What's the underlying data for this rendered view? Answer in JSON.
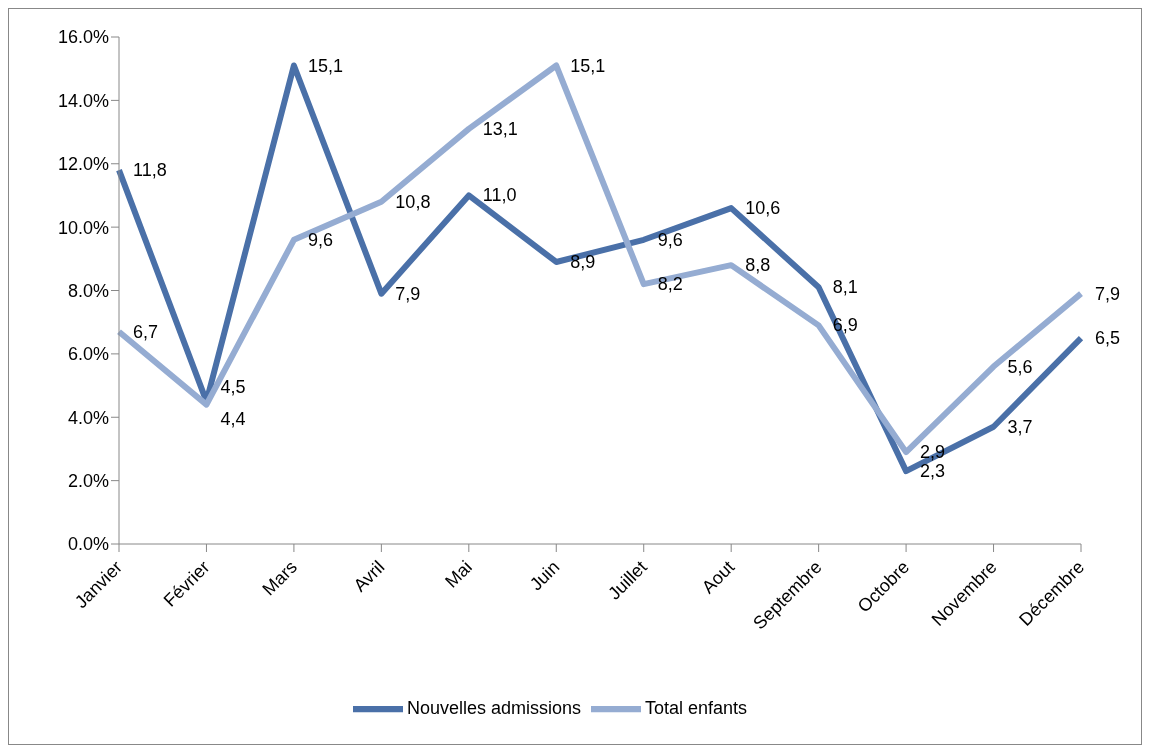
{
  "chart_data": {
    "type": "line",
    "categories": [
      "Janvier",
      "Février",
      "Mars",
      "Avril",
      "Mai",
      "Juin",
      "Juillet",
      "Aout",
      "Septembre",
      "Octobre",
      "Novembre",
      "Décembre"
    ],
    "series": [
      {
        "name": "Nouvelles admissions",
        "color": "#4a70a8",
        "values": [
          11.8,
          4.5,
          15.1,
          7.9,
          11.0,
          8.9,
          9.6,
          10.6,
          8.1,
          2.3,
          3.7,
          6.5
        ],
        "value_labels": [
          "11,8",
          "4,5",
          "15,1",
          "7,9",
          "11,0",
          "8,9",
          "9,6",
          "10,6",
          "8,1",
          "2,3",
          "3,7",
          "6,5"
        ]
      },
      {
        "name": "Total enfants",
        "color": "#95acd2",
        "values": [
          6.7,
          4.4,
          9.6,
          10.8,
          13.1,
          15.1,
          8.2,
          8.8,
          6.9,
          2.9,
          5.6,
          7.9
        ],
        "value_labels": [
          "6,7",
          "4,4",
          "9,6",
          "10,8",
          "13,1",
          "15,1",
          "8,2",
          "8,8",
          "6,9",
          "2,9",
          "5,6",
          "7,9"
        ]
      }
    ],
    "ylim": [
      0,
      16
    ],
    "yticks": [
      {
        "value": 0,
        "label": "0.0%"
      },
      {
        "value": 2,
        "label": "2.0%"
      },
      {
        "value": 4,
        "label": "4.0%"
      },
      {
        "value": 6,
        "label": "6.0%"
      },
      {
        "value": 8,
        "label": "8.0%"
      },
      {
        "value": 10,
        "label": "10.0%"
      },
      {
        "value": 12,
        "label": "12.0%"
      },
      {
        "value": 14,
        "label": "14.0%"
      },
      {
        "value": 16,
        "label": "16.0%"
      }
    ],
    "grid": false,
    "legend": "bottom",
    "marker": "none",
    "line_style": "solid"
  }
}
